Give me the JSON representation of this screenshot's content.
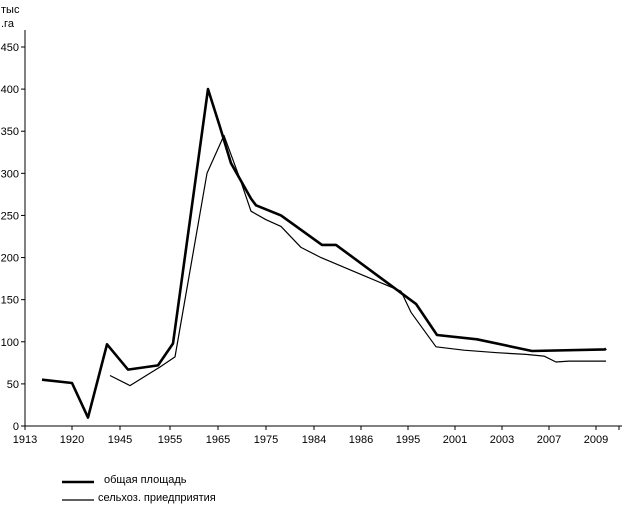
{
  "chart_data": {
    "type": "line",
    "title": "",
    "xlabel": "",
    "ylabel_lines": [
      "тыс",
      ".га"
    ],
    "ylim": [
      0,
      450
    ],
    "y_ticks": [
      0,
      50,
      100,
      150,
      200,
      250,
      300,
      350,
      400,
      450
    ],
    "x_tick_labels": [
      "1913",
      "1920",
      "1945",
      "1955",
      "1965",
      "1975",
      "1984",
      "1986",
      "1995",
      "2001",
      "2003",
      "2007",
      "2009"
    ],
    "grid": false,
    "legend_position": "bottom-left",
    "series": [
      {
        "name": "общая площадь",
        "color": "#000000",
        "x": [
          1916,
          1920,
          1923,
          1926,
          1929,
          1935,
          1939,
          1940,
          1944,
          1947,
          1949,
          1950,
          1951,
          1956,
          1958,
          1963,
          1968,
          1973,
          1982,
          1994,
          2001,
          2003,
          2004,
          2007,
          2009,
          2010,
          2011
        ],
        "y": [
          55,
          51,
          10,
          97,
          67,
          72,
          98,
          400,
          355,
          312,
          270,
          262,
          250,
          215,
          215,
          145,
          108,
          103,
          89,
          91,
          92,
          92,
          92,
          92,
          92,
          92,
          92
        ]
      },
      {
        "name": "сельхоз. приедприятия",
        "color": "#000000",
        "x": [
          1928,
          1931,
          1934,
          1936,
          1937,
          1940,
          1941,
          1943,
          1945,
          1947,
          1950,
          1953,
          1960,
          1966,
          1971,
          1975,
          1979,
          1986,
          1993,
          1997,
          2001,
          2004,
          2007,
          2009,
          2010,
          2011
        ],
        "y": [
          60,
          48,
          70,
          82,
          300,
          345,
          290,
          255,
          245,
          237,
          212,
          200,
          180,
          160,
          135,
          94,
          90,
          87,
          85,
          83,
          76,
          77,
          77,
          77,
          77,
          77
        ]
      }
    ]
  }
}
